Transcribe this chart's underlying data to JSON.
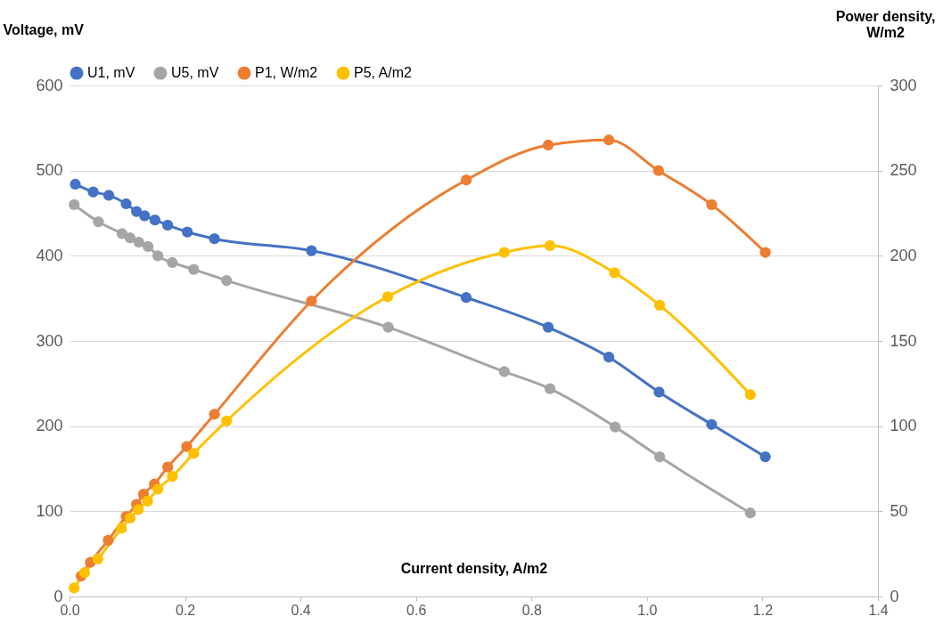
{
  "chart_data": {
    "type": "line",
    "xlabel": "Current density, A/m2",
    "ylabel": "Voltage, mV",
    "y2label": "Power density, W/m2",
    "xlim": [
      0,
      1.4
    ],
    "xticks": [
      {
        "value": 0,
        "label": "0.0"
      },
      {
        "value": 0.2,
        "label": "0.2"
      },
      {
        "value": 0.4,
        "label": "0.4"
      },
      {
        "value": 0.6,
        "label": "0.6"
      },
      {
        "value": 0.8,
        "label": "0.8"
      },
      {
        "value": 1,
        "label": "1.0"
      },
      {
        "value": 1.2,
        "label": "1.2"
      },
      {
        "value": 1.4,
        "label": "1.4"
      }
    ],
    "ylim": [
      0,
      600
    ],
    "yticks": [
      0,
      100,
      200,
      300,
      400,
      500,
      600
    ],
    "y2lim": [
      0,
      300
    ],
    "y2ticks": [
      0,
      50,
      100,
      150,
      200,
      250,
      300
    ],
    "grid": "y",
    "legend": "top",
    "marker": "circle",
    "line_style": "solid",
    "series": [
      {
        "name": "U1, mV",
        "color": "#4472c4",
        "x": [
          0.01,
          0.041,
          0.068,
          0.098,
          0.116,
          0.13,
          0.148,
          0.17,
          0.204,
          0.251,
          0.419,
          0.687,
          0.829,
          0.934,
          1.021,
          1.112,
          1.205
        ],
        "values": [
          484,
          475,
          471,
          461,
          452,
          447,
          442,
          436,
          428,
          420,
          406,
          351,
          316,
          281,
          240,
          202,
          164
        ]
      },
      {
        "name": "U5, mV",
        "color": "#a5a5a5",
        "x": [
          0.008,
          0.05,
          0.091,
          0.105,
          0.12,
          0.136,
          0.153,
          0.178,
          0.215,
          0.272,
          0.552,
          0.753,
          0.832,
          0.945,
          1.022,
          1.179
        ],
        "values": [
          460,
          440,
          426,
          421,
          416,
          411,
          400,
          392,
          384,
          371,
          316,
          264,
          244,
          199,
          164,
          98
        ]
      },
      {
        "name": "P1, W/m2",
        "color": "#ed7d31",
        "axis": "y2",
        "x": [
          0.02,
          0.036,
          0.067,
          0.098,
          0.116,
          0.128,
          0.147,
          0.17,
          0.203,
          0.251,
          0.419,
          0.687,
          0.829,
          0.934,
          1.02,
          1.112,
          1.205
        ],
        "values": [
          12,
          20,
          33,
          47,
          54,
          60,
          66,
          76,
          88,
          107,
          173.5,
          244.5,
          265,
          268,
          250,
          230,
          202
        ]
      },
      {
        "name": "P5, A/m2",
        "color": "#ffc000",
        "axis": "y2",
        "x": [
          0.008,
          0.026,
          0.049,
          0.09,
          0.105,
          0.119,
          0.135,
          0.153,
          0.178,
          0.215,
          0.272,
          0.551,
          0.753,
          0.832,
          0.944,
          1.022,
          1.179
        ],
        "values": [
          5,
          14,
          22,
          40,
          46,
          51,
          56,
          63,
          70.5,
          84,
          103,
          176,
          202,
          206,
          190,
          171,
          118.5
        ]
      }
    ]
  }
}
